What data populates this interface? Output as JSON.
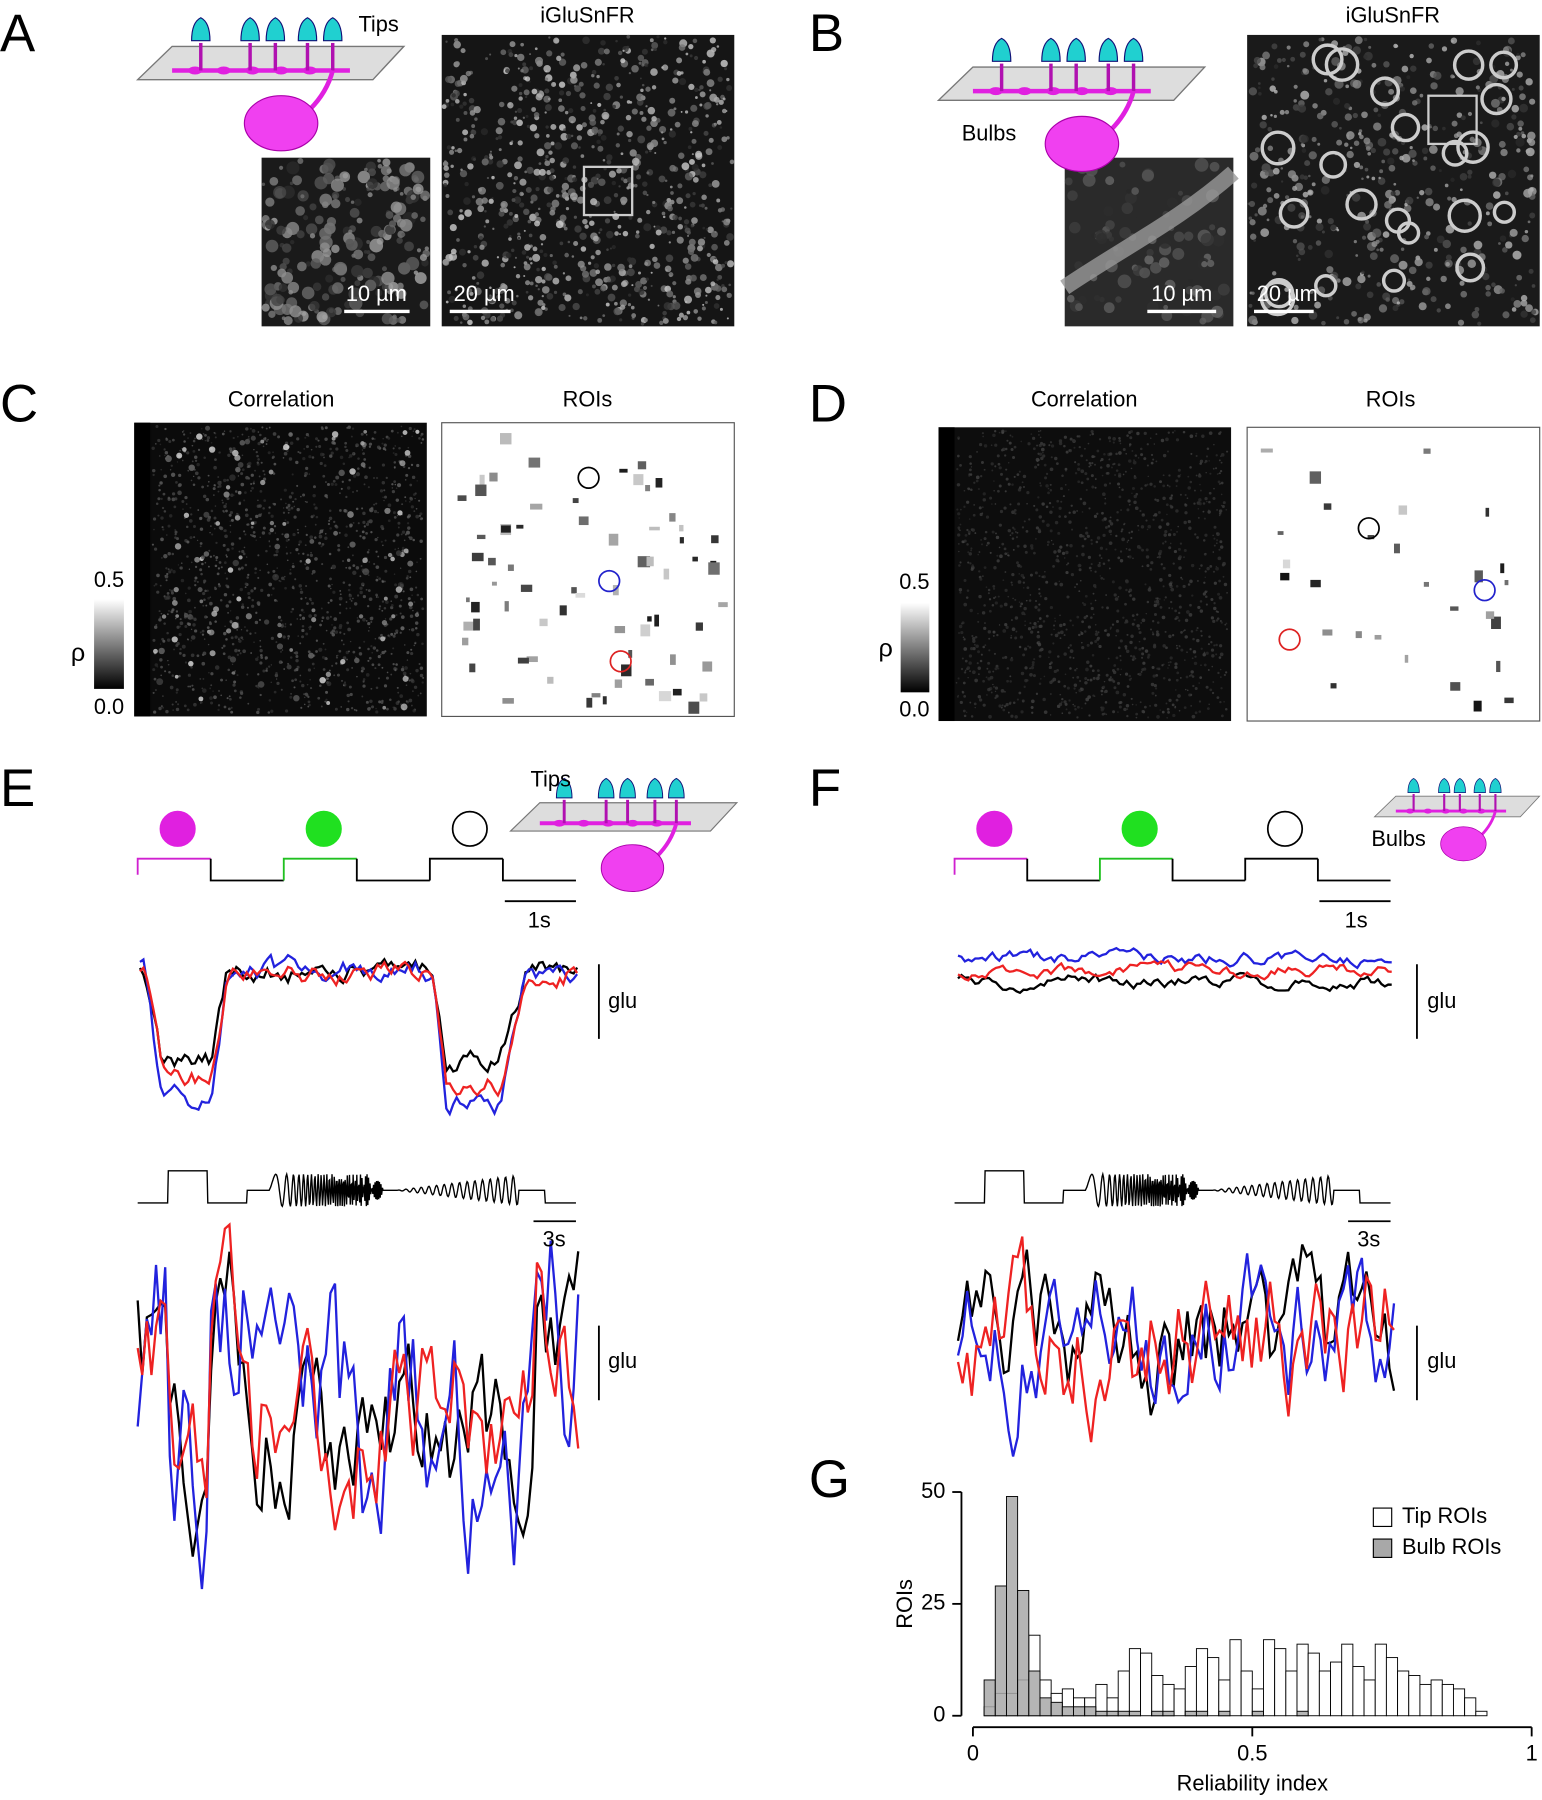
{
  "panel_labels": [
    "A",
    "B",
    "C",
    "D",
    "E",
    "F",
    "G"
  ],
  "a": {
    "schematic": "Tips",
    "title": "iGluSnFR",
    "inset_scale": "10 µm",
    "scale": "20 µm"
  },
  "b": {
    "schematic": "Bulbs",
    "title": "iGluSnFR",
    "inset_scale": "10 µm",
    "scale": "20 µm"
  },
  "c": {
    "left_title": "Correlation",
    "right_title": "ROIs",
    "colorbar_max": "0.5",
    "colorbar_min": "0.0",
    "colorbar_label": "ρ"
  },
  "d": {
    "left_title": "Correlation",
    "right_title": "ROIs",
    "colorbar_max": "0.5",
    "colorbar_min": "0.0",
    "colorbar_label": "ρ"
  },
  "e": {
    "schematic": "Tips",
    "time_scale_1": "1s",
    "glu_1": "glu",
    "time_scale_2": "3s",
    "glu_2": "glu"
  },
  "f": {
    "schematic": "Bulbs",
    "time_scale_1": "1s",
    "glu_1": "glu",
    "time_scale_2": "3s",
    "glu_2": "glu"
  },
  "chart_data": {
    "type": "histogram",
    "xlabel": "Reliability index",
    "ylabel": "ROIs",
    "bins": [
      0.02,
      0.04,
      0.06,
      0.08,
      0.1,
      0.12,
      0.14,
      0.16,
      0.18,
      0.2,
      0.22,
      0.24,
      0.26,
      0.28,
      0.3,
      0.32,
      0.34,
      0.36,
      0.38,
      0.4,
      0.42,
      0.44,
      0.46,
      0.48,
      0.5,
      0.52,
      0.54,
      0.56,
      0.58,
      0.6,
      0.62,
      0.64,
      0.66,
      0.68,
      0.7,
      0.72,
      0.74,
      0.76,
      0.78,
      0.8,
      0.82,
      0.84,
      0.86,
      0.88,
      0.9,
      0.92
    ],
    "series": [
      {
        "name": "Tip ROIs",
        "color": "#ffffff",
        "values": [
          2,
          5,
          5,
          8,
          18,
          8,
          5,
          6,
          4,
          4,
          7,
          4,
          10,
          15,
          14,
          9,
          7,
          6,
          11,
          15,
          13,
          8,
          17,
          10,
          6,
          17,
          15,
          10,
          16,
          14,
          10,
          12,
          16,
          11,
          8,
          16,
          13,
          10,
          9,
          7,
          8,
          7,
          6,
          4,
          1
        ]
      },
      {
        "name": "Bulb ROIs",
        "color": "#a8a8a8",
        "values": [
          8,
          29,
          49,
          28,
          10,
          4,
          3,
          2,
          2,
          2,
          1,
          1,
          1,
          1,
          0,
          1,
          1,
          0,
          1,
          1,
          0,
          1,
          0,
          0,
          1,
          0,
          0,
          0,
          1,
          0,
          0,
          0,
          0,
          0,
          0,
          0,
          0,
          0,
          0,
          0,
          0,
          0,
          0,
          0,
          0
        ]
      }
    ],
    "xlim": [
      0,
      1
    ],
    "xticks": [
      0,
      0.5,
      1
    ],
    "ylim": [
      0,
      50
    ],
    "yticks": [
      0,
      25,
      50
    ],
    "legend": "upper right"
  }
}
